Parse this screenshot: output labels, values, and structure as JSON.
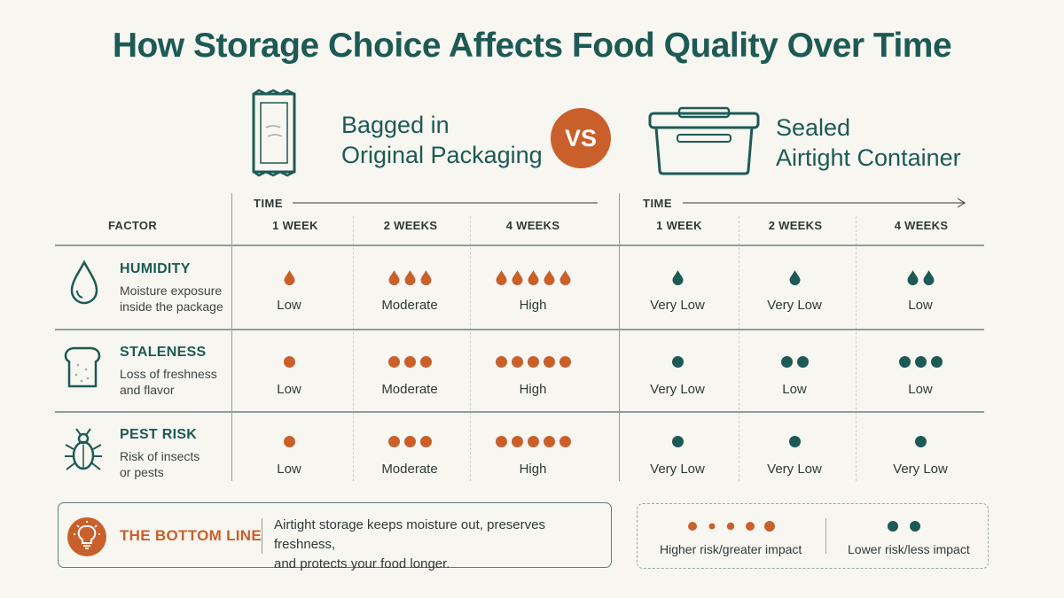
{
  "title": "How Storage Choice Affects Food Quality Over Time",
  "left_side": {
    "title_line1": "Bagged in",
    "title_line2": "Original Packaging",
    "icon": "snack-bag-icon",
    "color": "#c9602b"
  },
  "vs_label": "VS",
  "right_side": {
    "title_line1": "Sealed",
    "title_line2": "Airtight Container",
    "icon": "airtight-container-icon",
    "color": "#1d5a55"
  },
  "factor_header": "FACTOR",
  "time_label": "TIME",
  "columns": [
    "1 WEEK",
    "2 WEEKS",
    "4 WEEKS"
  ],
  "factors": [
    {
      "name": "HUMIDITY",
      "desc_line1": "Moisture exposure",
      "desc_line2": "inside the package",
      "icon": "water-drop-icon",
      "mark": "drop",
      "bagged": [
        {
          "count": 1,
          "label": "Low"
        },
        {
          "count": 3,
          "label": "Moderate"
        },
        {
          "count": 5,
          "label": "High"
        }
      ],
      "sealed": [
        {
          "count": 1,
          "label": "Very Low"
        },
        {
          "count": 1,
          "label": "Very Low"
        },
        {
          "count": 2,
          "label": "Low"
        }
      ]
    },
    {
      "name": "STALENESS",
      "desc_line1": "Loss of freshness",
      "desc_line2": "and flavor",
      "icon": "bread-slice-icon",
      "mark": "dot",
      "bagged": [
        {
          "count": 1,
          "label": "Low"
        },
        {
          "count": 3,
          "label": "Moderate"
        },
        {
          "count": 5,
          "label": "High"
        }
      ],
      "sealed": [
        {
          "count": 1,
          "label": "Very Low"
        },
        {
          "count": 2,
          "label": "Low"
        },
        {
          "count": 3,
          "label": "Low"
        }
      ]
    },
    {
      "name": "PEST RISK",
      "desc_line1": "Risk of insects",
      "desc_line2": "or pests",
      "icon": "beetle-icon",
      "mark": "dot",
      "bagged": [
        {
          "count": 1,
          "label": "Low"
        },
        {
          "count": 3,
          "label": "Moderate"
        },
        {
          "count": 5,
          "label": "High"
        }
      ],
      "sealed": [
        {
          "count": 1,
          "label": "Very Low"
        },
        {
          "count": 1,
          "label": "Very Low"
        },
        {
          "count": 1,
          "label": "Very Low"
        }
      ]
    }
  ],
  "bottom_line": {
    "title": "THE BOTTOM LINE",
    "text_line1": "Airtight storage keeps moisture out, preserves freshness,",
    "text_line2": "and protects your food longer.",
    "icon": "lightbulb-icon"
  },
  "legend": {
    "high_label": "Higher risk/greater impact",
    "low_label": "Lower risk/less impact",
    "high_color": "#c9602b",
    "low_color": "#1d5a55"
  }
}
